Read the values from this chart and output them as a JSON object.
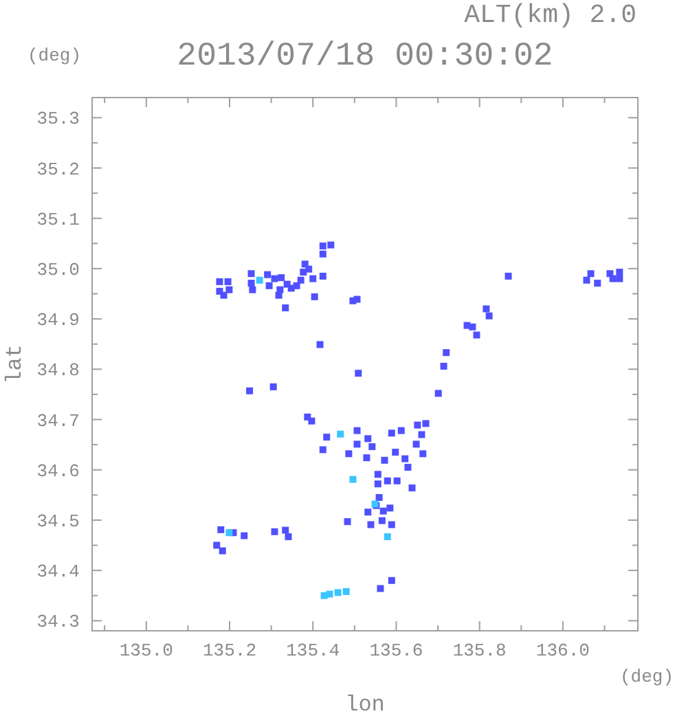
{
  "chart_data": {
    "type": "scatter",
    "title": "2013/07/18 00:30:02",
    "subtitle": "ALT(km) 2.0",
    "xlabel": "lon",
    "ylabel": "lat",
    "annotations": [
      "(deg)",
      "(deg)"
    ],
    "xlim": [
      134.87,
      136.18
    ],
    "ylim": [
      34.28,
      35.34
    ],
    "xticks": [
      {
        "value": 134.9,
        "label": null
      },
      {
        "value": 135,
        "label": "135.0"
      },
      {
        "value": 135.1,
        "label": null
      },
      135.2,
      {
        "value": 135.3,
        "label": null
      },
      135.4,
      {
        "value": 135.5,
        "label": null
      },
      135.6,
      {
        "value": 135.7,
        "label": null
      },
      135.8,
      {
        "value": 135.9,
        "label": null
      },
      {
        "value": 136,
        "label": "136.0"
      },
      {
        "value": 136.1,
        "label": null
      }
    ],
    "yticks": [
      34.3,
      {
        "value": 34.35,
        "label": null
      },
      34.4,
      {
        "value": 34.45,
        "label": null
      },
      34.5,
      {
        "value": 34.55,
        "label": null
      },
      34.6,
      {
        "value": 34.65,
        "label": null
      },
      34.7,
      {
        "value": 34.75,
        "label": null
      },
      34.8,
      {
        "value": 34.85,
        "label": null
      },
      34.9,
      {
        "value": 34.95,
        "label": null
      },
      {
        "value": 35,
        "label": "35.0"
      },
      {
        "value": 35.05,
        "label": null
      },
      35.1,
      {
        "value": 35.15,
        "label": null
      },
      35.2,
      {
        "value": 35.25,
        "label": null
      },
      35.3
    ],
    "marker": "square",
    "series": [
      {
        "color": "#5050ff",
        "x": [
          135.176,
          135.196,
          135.176,
          135.199,
          135.186,
          135.252,
          135.252,
          135.255,
          135.291,
          135.295,
          135.308,
          135.324,
          135.338,
          135.321,
          135.381,
          135.377,
          135.371,
          135.361,
          135.348,
          135.39,
          135.318,
          135.424,
          135.443,
          135.424,
          135.4,
          135.424,
          135.404,
          135.334,
          135.496,
          135.506,
          135.417,
          135.509,
          135.305,
          135.248,
          135.869,
          135.816,
          135.823,
          135.783,
          135.77,
          135.793,
          135.72,
          135.714,
          135.701,
          136.067,
          136.057,
          136.083,
          136.113,
          136.12,
          136.136,
          136.136,
          135.387,
          135.397,
          135.433,
          135.424,
          135.506,
          135.506,
          135.532,
          135.542,
          135.529,
          135.486,
          135.589,
          135.612,
          135.651,
          135.671,
          135.661,
          135.648,
          135.664,
          135.598,
          135.621,
          135.572,
          135.628,
          135.556,
          135.556,
          135.579,
          135.602,
          135.638,
          135.559,
          135.552,
          135.569,
          135.585,
          135.566,
          135.589,
          135.539,
          135.483,
          135.532,
          135.179,
          135.209,
          135.235,
          135.169,
          135.183,
          135.308,
          135.334,
          135.341,
          135.589,
          135.562
        ],
        "values": [
          34.974,
          34.974,
          34.955,
          34.958,
          34.947,
          34.99,
          34.971,
          34.958,
          34.988,
          34.966,
          34.98,
          34.982,
          34.969,
          34.958,
          35.009,
          34.993,
          34.977,
          34.966,
          34.961,
          34.999,
          34.947,
          35.045,
          35.047,
          35.029,
          34.98,
          34.985,
          34.944,
          34.922,
          34.936,
          34.939,
          34.849,
          34.792,
          34.765,
          34.757,
          34.985,
          34.92,
          34.906,
          34.884,
          34.887,
          34.868,
          34.833,
          34.806,
          34.752,
          34.99,
          34.977,
          34.971,
          34.99,
          34.98,
          34.993,
          34.98,
          34.705,
          34.697,
          34.665,
          34.64,
          34.678,
          34.651,
          34.662,
          34.646,
          34.624,
          34.632,
          34.673,
          34.678,
          34.689,
          34.692,
          34.67,
          34.651,
          34.632,
          34.635,
          34.622,
          34.619,
          34.605,
          34.591,
          34.572,
          34.578,
          34.578,
          34.564,
          34.545,
          34.529,
          34.518,
          34.524,
          34.499,
          34.491,
          34.491,
          34.497,
          34.516,
          34.481,
          34.475,
          34.469,
          34.45,
          34.439,
          34.477,
          34.48,
          34.467,
          34.38,
          34.364
        ]
      },
      {
        "color": "#3cc4ff",
        "x": [
          135.272,
          135.199,
          135.496,
          135.579,
          135.466,
          135.44,
          135.46,
          135.48,
          135.427,
          135.549
        ],
        "values": [
          34.977,
          34.475,
          34.581,
          34.467,
          34.671,
          34.353,
          34.356,
          34.358,
          34.35,
          34.532
        ]
      }
    ]
  }
}
